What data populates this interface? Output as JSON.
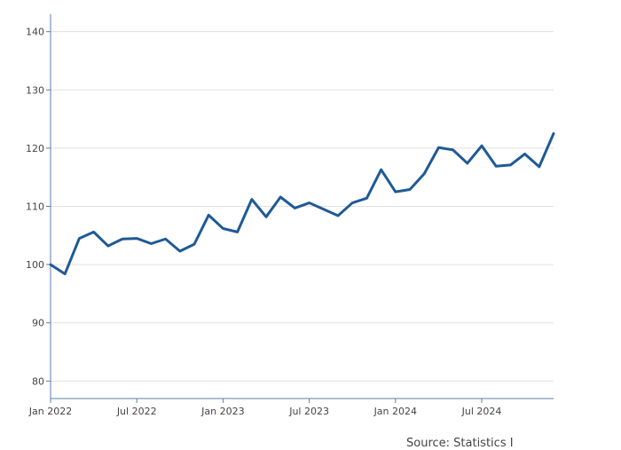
{
  "source_note": "Source: Statistics I",
  "colors": {
    "line": "#1f5a96",
    "grid": "#e1e1e1",
    "axis": "#5a7fa8"
  },
  "chart_data": {
    "type": "line",
    "title": "",
    "xlabel": "",
    "ylabel": "",
    "x_tick_labels": [
      "Jan 2022",
      "Jul 2022",
      "Jan 2023",
      "Jul 2023",
      "Jan 2024",
      "Jul 2024"
    ],
    "y_tick_labels": [
      "80",
      "90",
      "100",
      "110",
      "120",
      "130",
      "140"
    ],
    "y_ticks": [
      80,
      90,
      100,
      110,
      120,
      130,
      140
    ],
    "ylim": [
      77,
      143
    ],
    "xlim": [
      "2022-01",
      "2024-12"
    ],
    "grid": true,
    "series": [
      {
        "x": [
          "2022-01",
          "2022-02",
          "2022-03",
          "2022-04",
          "2022-05",
          "2022-06",
          "2022-07",
          "2022-08",
          "2022-09",
          "2022-10",
          "2022-11",
          "2022-12",
          "2023-01",
          "2023-02",
          "2023-03",
          "2023-04",
          "2023-05",
          "2023-06",
          "2023-07",
          "2023-08",
          "2023-09",
          "2023-10",
          "2023-11",
          "2023-12",
          "2024-01",
          "2024-02",
          "2024-03",
          "2024-04",
          "2024-05",
          "2024-06",
          "2024-07",
          "2024-08",
          "2024-09",
          "2024-10",
          "2024-11",
          "2024-12"
        ],
        "values": [
          100,
          98.4,
          104.5,
          105.6,
          103.2,
          104.4,
          104.5,
          103.6,
          104.4,
          102.3,
          103.5,
          108.5,
          106.2,
          105.6,
          111.2,
          108.2,
          111.6,
          109.7,
          110.6,
          109.5,
          108.4,
          110.6,
          111.4,
          116.3,
          112.5,
          112.9,
          115.6,
          120.1,
          119.7,
          117.4,
          120.4,
          116.9,
          117.1,
          119.0,
          116.8,
          122.5
        ]
      }
    ]
  }
}
